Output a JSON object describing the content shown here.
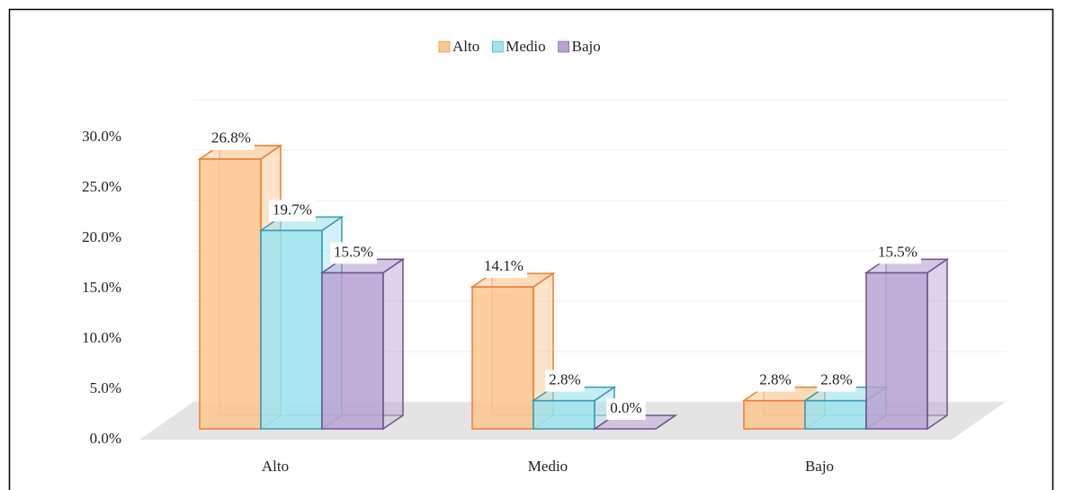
{
  "chart_data": {
    "type": "bar3d",
    "categories": [
      "Alto",
      "Medio",
      "Bajo"
    ],
    "series": [
      {
        "name": "Alto",
        "color": "#fbc68f",
        "edge": "#ed7d31",
        "values": [
          26.8,
          14.1,
          2.8
        ],
        "value_labels": [
          "26.8%",
          "14.1%",
          "2.8%"
        ]
      },
      {
        "name": "Medio",
        "color": "#9ee4ee",
        "edge": "#3a9bb0",
        "values": [
          19.7,
          2.8,
          2.8
        ],
        "value_labels": [
          "19.7%",
          "2.8%",
          "2.8%"
        ]
      },
      {
        "name": "Bajo",
        "color": "#b9a3d3",
        "edge": "#6e548f",
        "values": [
          15.5,
          0.0,
          15.5
        ],
        "value_labels": [
          "15.5%",
          "0.0%",
          "15.5%"
        ]
      }
    ],
    "ylim": [
      0,
      30
    ],
    "yticks": [
      {
        "value": 0,
        "label": "0.0%"
      },
      {
        "value": 5,
        "label": "5.0%"
      },
      {
        "value": 10,
        "label": "10.0%"
      },
      {
        "value": 15,
        "label": "15.0%"
      },
      {
        "value": 20,
        "label": "20.0%"
      },
      {
        "value": 25,
        "label": "25.0%"
      },
      {
        "value": 30,
        "label": "30.0%"
      }
    ],
    "grid": true,
    "legend": "top"
  }
}
